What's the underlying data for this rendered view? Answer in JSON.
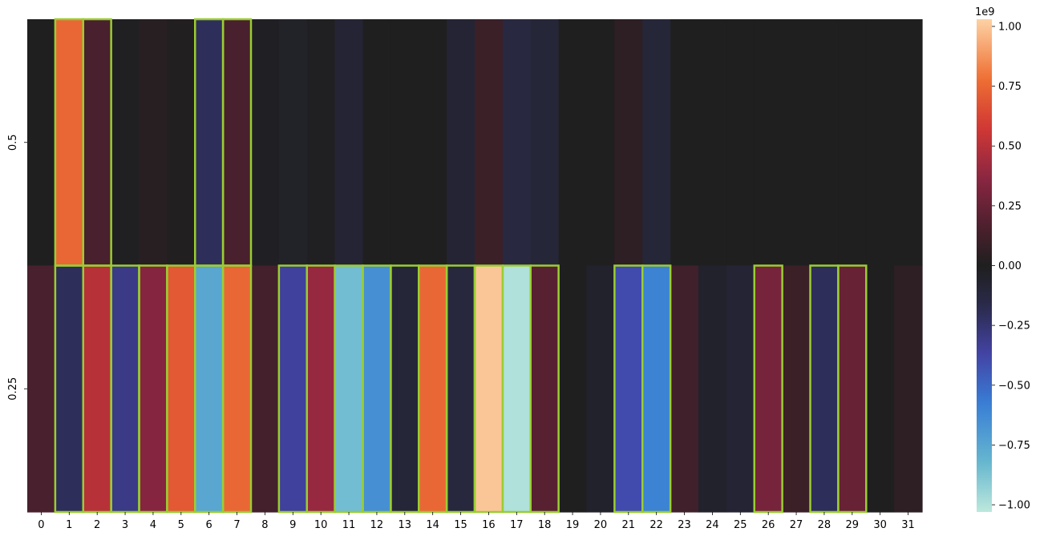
{
  "chart_data": {
    "type": "heatmap",
    "rows": [
      "0.5",
      "0.25"
    ],
    "columns": [
      "0",
      "1",
      "2",
      "3",
      "4",
      "5",
      "6",
      "7",
      "8",
      "9",
      "10",
      "11",
      "12",
      "13",
      "14",
      "15",
      "16",
      "17",
      "18",
      "19",
      "20",
      "21",
      "22",
      "23",
      "24",
      "25",
      "26",
      "27",
      "28",
      "29",
      "30",
      "31"
    ],
    "values": [
      [
        0.0,
        0.75,
        0.15,
        -0.01,
        0.03,
        0.01,
        -0.2,
        0.15,
        -0.02,
        -0.04,
        -0.01,
        -0.08,
        0.0,
        0.0,
        0.0,
        -0.08,
        0.1,
        -0.13,
        -0.1,
        0.0,
        0.0,
        0.05,
        -0.1,
        0.0,
        0.0,
        0.0,
        0.0,
        0.0,
        0.0,
        0.0,
        0.0,
        0.0
      ],
      [
        0.15,
        -0.2,
        0.5,
        -0.3,
        0.35,
        0.7,
        -0.75,
        0.75,
        0.13,
        -0.35,
        0.4,
        -0.85,
        -0.65,
        -0.1,
        0.75,
        -0.12,
        1.0,
        -1.0,
        0.2,
        0.0,
        -0.05,
        -0.4,
        -0.6,
        0.12,
        -0.05,
        -0.08,
        0.3,
        0.1,
        -0.2,
        0.25,
        0.0,
        0.05
      ]
    ],
    "highlighted": [
      [
        1,
        2,
        6,
        7
      ],
      [
        1,
        2,
        3,
        4,
        5,
        6,
        7,
        9,
        10,
        11,
        12,
        13,
        14,
        15,
        16,
        17,
        18,
        21,
        22,
        26,
        28,
        29
      ]
    ],
    "highlight_color": "#9acd32",
    "colormap": "icefire",
    "vmin": -1.03,
    "vmax": 1.03,
    "colorbar": {
      "ticks": [
        1.0,
        0.75,
        0.5,
        0.25,
        0.0,
        -0.25,
        -0.5,
        -0.75,
        -1.0
      ],
      "tick_labels": [
        "1.00",
        "0.75",
        "0.50",
        "0.25",
        "0.00",
        "−0.25",
        "−0.50",
        "−0.75",
        "−1.00"
      ],
      "scale_label": "1e9"
    }
  }
}
